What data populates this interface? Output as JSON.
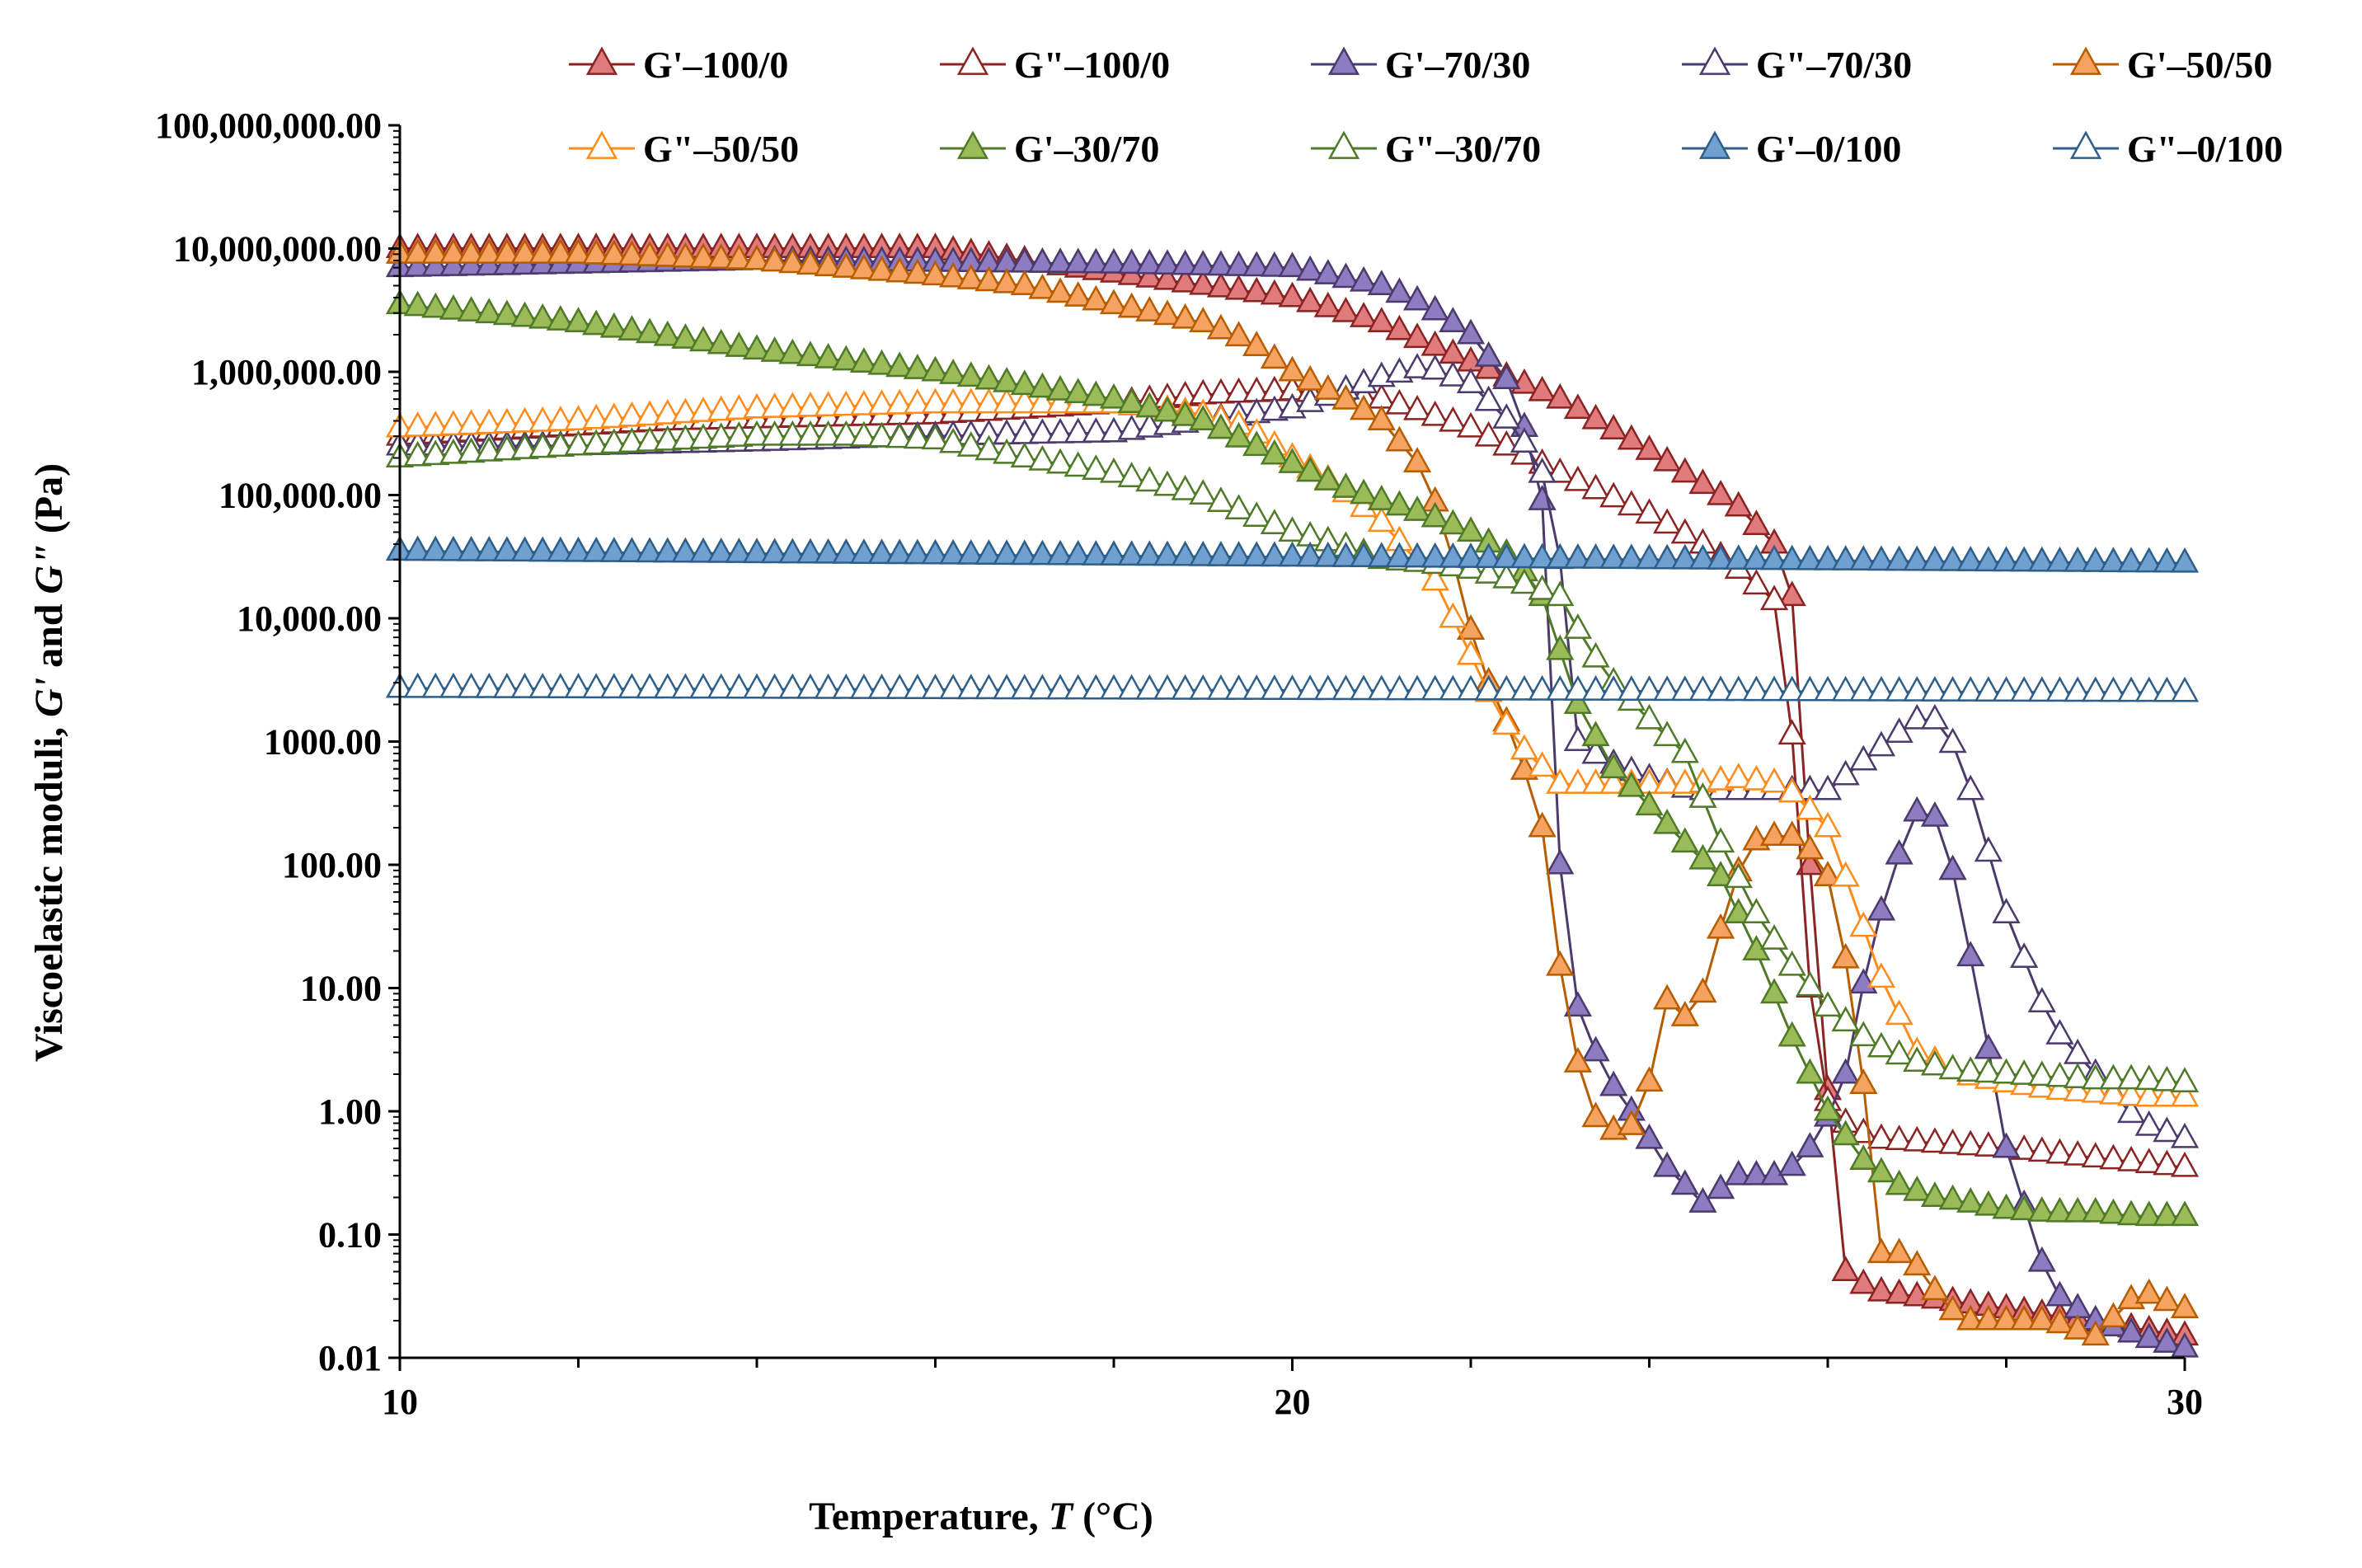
{
  "chart_data": {
    "type": "scatter",
    "title": "",
    "xlabel": "Temperature, ",
    "xlabel_var": "T",
    "xlabel_unit": " (°C)",
    "ylabel": "Viscoelastic moduli, ",
    "ylabel_var1": "G'",
    "ylabel_mid": " and ",
    "ylabel_var2": "G\"",
    "ylabel_unit": " (Pa)",
    "xlim": [
      10,
      30
    ],
    "ylim": [
      0.01,
      100000000
    ],
    "yscale": "log",
    "x_ticks": [
      10,
      20,
      30
    ],
    "x_tick_labels": [
      "10",
      "20",
      "30"
    ],
    "x_minor_step": 2,
    "y_ticks": [
      0.01,
      0.1,
      1,
      10,
      100,
      1000,
      10000,
      100000,
      1000000,
      10000000,
      100000000
    ],
    "y_tick_labels": [
      "0.01",
      "0.10",
      "1.00",
      "10.00",
      "100.00",
      "1000.00",
      "10,000.00",
      "100,000.00",
      "1,000,000.00",
      "10,000,000.00",
      "100,000,000.00"
    ],
    "legend_position": "top",
    "series": [
      {
        "name": "G'–100/0",
        "color": "#8B2323",
        "fill": "#E07B7B",
        "filled": true,
        "x": [
          10,
          16,
          20,
          21,
          22,
          23,
          24,
          25,
          25.4,
          25.6,
          25.9,
          26.2,
          26.5,
          28,
          30
        ],
        "y": [
          10000000,
          10000000,
          4000000,
          2500000,
          1200000,
          600000,
          230000,
          80000,
          40000,
          15000,
          8,
          0.05,
          0.035,
          0.025,
          0.015
        ]
      },
      {
        "name": "G\"–100/0",
        "color": "#8B2323",
        "fill": "none",
        "filled": false,
        "x": [
          10,
          13,
          16,
          18,
          19,
          20,
          21,
          22,
          23,
          24,
          24.6,
          25,
          25.5,
          25.8,
          26,
          26.2,
          26.5,
          28,
          30
        ],
        "y": [
          300000,
          400000,
          450000,
          550000,
          650000,
          700000,
          600000,
          350000,
          150000,
          70000,
          40000,
          25000,
          12000,
          10,
          1.2,
          0.8,
          0.6,
          0.5,
          0.35
        ]
      },
      {
        "name": "G'–70/30",
        "color": "#4B3A6B",
        "fill": "#8E7CC3",
        "filled": true,
        "x": [
          10,
          14,
          18,
          20,
          21,
          21.5,
          22,
          22.5,
          22.8,
          23,
          23.2,
          23.5,
          23.8,
          24.2,
          24.6,
          25,
          25.5,
          25.9,
          26.2,
          26.5,
          26.8,
          27.1,
          27.4,
          27.7,
          28,
          28.5,
          29,
          29.5,
          30
        ],
        "y": [
          7000000,
          8000000,
          7500000,
          7000000,
          5000000,
          3500000,
          2000000,
          700000,
          90000,
          100,
          7,
          2,
          1,
          0.35,
          0.18,
          0.3,
          0.3,
          0.6,
          2,
          25,
          120,
          400,
          90,
          8,
          0.5,
          0.035,
          0.02,
          0.015,
          0.012
        ]
      },
      {
        "name": "G\"–70/30",
        "color": "#4B3A6B",
        "fill": "none",
        "filled": false,
        "x": [
          10,
          12,
          14,
          16,
          18,
          20,
          21,
          21.5,
          22,
          22.5,
          22.8,
          23,
          23.2,
          23.5,
          24,
          24.5,
          25,
          25.5,
          26,
          26.5,
          27,
          27.3,
          27.6,
          28,
          28.5,
          29,
          29.5,
          30
        ],
        "y": [
          250000,
          250000,
          270000,
          300000,
          320000,
          500000,
          900000,
          1100000,
          800000,
          350000,
          150000,
          30000,
          1000,
          700,
          500,
          400,
          400,
          400,
          400,
          800,
          1500,
          1500,
          400,
          40,
          5,
          2,
          0.8,
          0.6
        ]
      },
      {
        "name": "G'–50/50",
        "color": "#B85C00",
        "fill": "#F4A460",
        "filled": true,
        "x": [
          10,
          12,
          14,
          16,
          17,
          18,
          19,
          19.5,
          20,
          20.5,
          21,
          21.5,
          21.8,
          22,
          22.2,
          22.5,
          22.8,
          23,
          23.3,
          23.6,
          23.9,
          24.2,
          24.5,
          24.8,
          25.1,
          25.4,
          25.7,
          26,
          26.3,
          26.6,
          26.9,
          27.2,
          27.5,
          28,
          28.5,
          29,
          29.5,
          30
        ],
        "y": [
          9000000,
          9000000,
          8000000,
          6000000,
          5000000,
          3500000,
          2500000,
          1800000,
          1000000,
          650000,
          400000,
          150000,
          30000,
          8000,
          3000,
          1000,
          200,
          15,
          1,
          0.7,
          0.8,
          8,
          5,
          30,
          150,
          170,
          170,
          80,
          8,
          0.07,
          0.07,
          0.035,
          0.02,
          0.02,
          0.02,
          0.015,
          0.035,
          0.025
        ]
      },
      {
        "name": "G\"–50/50",
        "color": "#FF8C1A",
        "fill": "none",
        "filled": false,
        "x": [
          10,
          12,
          14,
          16,
          18,
          19,
          19.5,
          20,
          20.5,
          21,
          21.3,
          21.6,
          22,
          22.2,
          22.5,
          23,
          24,
          24.5,
          25,
          25.5,
          26,
          26.3,
          26.6,
          27,
          27.5,
          28,
          28.5,
          29,
          29.5,
          30
        ],
        "y": [
          350000,
          400000,
          500000,
          550000,
          550000,
          450000,
          350000,
          200000,
          120000,
          60000,
          35000,
          20000,
          5000,
          2500,
          1000,
          450,
          450,
          450,
          500,
          450,
          200,
          50,
          12,
          3,
          2,
          1.7,
          1.5,
          1.4,
          1.3,
          1.3
        ]
      },
      {
        "name": "G'–30/70",
        "color": "#4F7A28",
        "fill": "#9BBB59",
        "filled": true,
        "x": [
          10,
          12,
          14,
          16,
          18,
          19,
          20,
          20.5,
          21,
          21.5,
          22,
          22.5,
          22.8,
          23.2,
          23.6,
          24,
          24.4,
          24.8,
          25.2,
          25.6,
          26,
          26.4,
          26.8,
          27.2,
          27.6,
          28,
          28.5,
          29,
          29.5,
          30
        ],
        "y": [
          3500000,
          2500000,
          1500000,
          1000000,
          600000,
          400000,
          180000,
          120000,
          90000,
          70000,
          50000,
          30000,
          15000,
          2000,
          600,
          300,
          150,
          80,
          20,
          4,
          1,
          0.4,
          0.25,
          0.2,
          0.18,
          0.16,
          0.15,
          0.15,
          0.14,
          0.14
        ]
      },
      {
        "name": "G\"–30/70",
        "color": "#4F7A28",
        "fill": "none",
        "filled": false,
        "x": [
          10,
          12,
          14,
          15,
          16,
          17,
          18,
          19,
          20,
          20.5,
          21,
          21.5,
          22,
          22.5,
          23,
          23.3,
          23.6,
          24,
          24.4,
          24.8,
          25.2,
          25.6,
          26,
          26.5,
          27,
          27.5,
          28,
          28.5,
          29,
          29.5,
          30
        ],
        "y": [
          200000,
          250000,
          300000,
          300000,
          280000,
          200000,
          150000,
          100000,
          50000,
          40000,
          30000,
          28000,
          25000,
          20000,
          15000,
          6000,
          3000,
          1500,
          800,
          150,
          40,
          15,
          7,
          3.5,
          2.5,
          2.1,
          2,
          1.9,
          1.8,
          1.8,
          1.7
        ]
      },
      {
        "name": "G'–0/100",
        "color": "#2E5F8A",
        "fill": "#6FA0D0",
        "filled": true,
        "x": [
          10,
          30
        ],
        "y": [
          35000,
          28000
        ]
      },
      {
        "name": "G\"–0/100",
        "color": "#2E5F8A",
        "fill": "none",
        "filled": false,
        "x": [
          10,
          30
        ],
        "y": [
          2700,
          2500
        ]
      }
    ]
  }
}
